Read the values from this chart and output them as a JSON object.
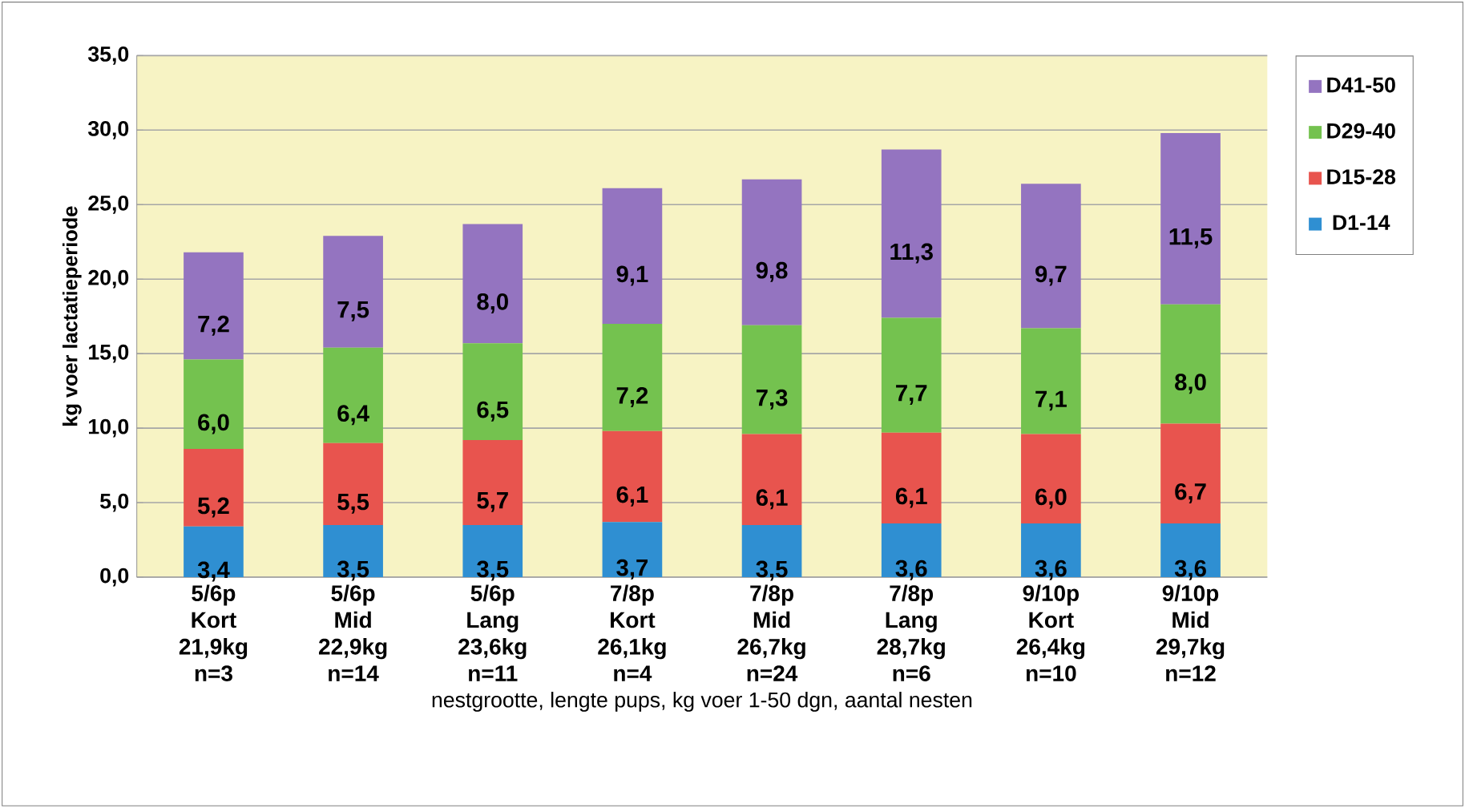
{
  "chart_data": {
    "type": "bar",
    "stacked": true,
    "xlabel": "nestgrootte, lengte pups, kg voer 1-50 dgn, aantal nesten",
    "ylabel": "kg voer lactatieperiode",
    "categories": [
      "5/6p Kort 21,9kg n=3",
      "5/6p Mid 22,9kg n=14",
      "5/6p Lang 23,6kg n=11",
      "7/8p Kort 26,1kg n=4",
      "7/8p Mid 26,7kg n=24",
      "7/8p Lang 28,7kg n=6",
      "9/10p Kort 26,4kg n=10",
      "9/10p Mid 29,7kg n=12"
    ],
    "series": [
      {
        "name": "D1-14",
        "color": "#2f8fd2",
        "values": [
          3.4,
          3.5,
          3.5,
          3.7,
          3.5,
          3.6,
          3.6,
          3.6
        ],
        "value_labels": [
          "3,4",
          "3,5",
          "3,5",
          "3,7",
          "3,5",
          "3,6",
          "3,6",
          "3,6"
        ]
      },
      {
        "name": "D15-28",
        "color": "#e8544e",
        "values": [
          5.2,
          5.5,
          5.7,
          6.1,
          6.1,
          6.1,
          6.0,
          6.7
        ],
        "value_labels": [
          "5,2",
          "5,5",
          "5,7",
          "6,1",
          "6,1",
          "6,1",
          "6,0",
          "6,7"
        ]
      },
      {
        "name": "D29-40",
        "color": "#74c24f",
        "values": [
          6.0,
          6.4,
          6.5,
          7.2,
          7.3,
          7.7,
          7.1,
          8.0
        ],
        "value_labels": [
          "6,0",
          "6,4",
          "6,5",
          "7,2",
          "7,3",
          "7,7",
          "7,1",
          "8,0"
        ]
      },
      {
        "name": "D41-50",
        "color": "#9474c0",
        "values": [
          7.2,
          7.5,
          8.0,
          9.1,
          9.8,
          11.3,
          9.7,
          11.5
        ],
        "value_labels": [
          "7,2",
          "7,5",
          "8,0",
          "9,1",
          "9,8",
          "11,3",
          "9,7",
          "11,5"
        ]
      }
    ],
    "ylim": [
      0,
      35
    ],
    "yticks": [
      {
        "value": 0,
        "label": "0,0"
      },
      {
        "value": 5,
        "label": "5,0"
      },
      {
        "value": 10,
        "label": "10,0"
      },
      {
        "value": 15,
        "label": "15,0"
      },
      {
        "value": 20,
        "label": "20,0"
      },
      {
        "value": 25,
        "label": "25,0"
      },
      {
        "value": 30,
        "label": "30,0"
      },
      {
        "value": 35,
        "label": "35,0"
      }
    ],
    "grid": "y",
    "legend": "right"
  }
}
